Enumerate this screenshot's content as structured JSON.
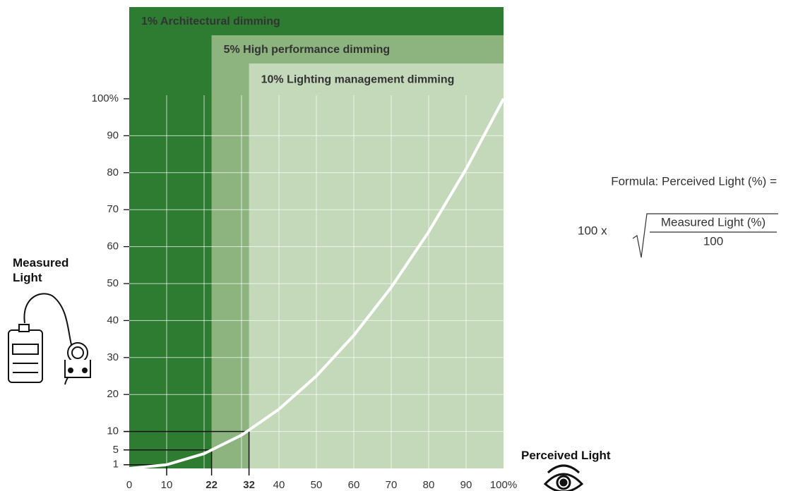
{
  "chart_data": {
    "type": "line",
    "x_label": "Perceived Light",
    "y_label": "Measured Light",
    "x": [
      0,
      10,
      20,
      30,
      40,
      50,
      60,
      70,
      80,
      90,
      100
    ],
    "series": [
      {
        "color": "#ffffff",
        "values": [
          0,
          1,
          4,
          9,
          16,
          25,
          36,
          49,
          64,
          81,
          100
        ]
      }
    ],
    "xlim": [
      0,
      100
    ],
    "ylim": [
      0,
      100
    ],
    "xticks": [
      0,
      10,
      22,
      32,
      40,
      50,
      60,
      70,
      80,
      90,
      {
        "value": 100,
        "label": "100%"
      }
    ],
    "yticks": [
      1,
      5,
      10,
      20,
      30,
      40,
      50,
      60,
      70,
      80,
      90,
      {
        "value": 100,
        "label": "100%"
      }
    ],
    "xgrid": [
      10,
      20,
      30,
      40,
      50,
      60,
      70,
      80,
      90
    ],
    "ygrid": [
      10,
      20,
      30,
      40,
      50,
      60,
      70,
      80,
      90
    ],
    "dimming_levels": [
      {
        "label": "1% Architectural dimming",
        "measured": 1,
        "perceived": 10,
        "color": "#2e7b32",
        "text_color": "#ffffff",
        "tick_color": "#333333"
      },
      {
        "label": "5% High performance dimming",
        "measured": 5,
        "perceived": 22,
        "color": "#8db47e",
        "text_color": "#111111",
        "tick_color": "#2e7b32"
      },
      {
        "label": "10% Lighting management dimming",
        "measured": 10,
        "perceived": 32,
        "color": "#c4d9ba",
        "text_color": "#111111",
        "tick_color": "#8db47e"
      }
    ]
  },
  "formula": {
    "intro": "Formula: Perceived Light (%) =",
    "factor": "100  x",
    "numerator": "Measured Light (%)",
    "denominator": "100"
  }
}
